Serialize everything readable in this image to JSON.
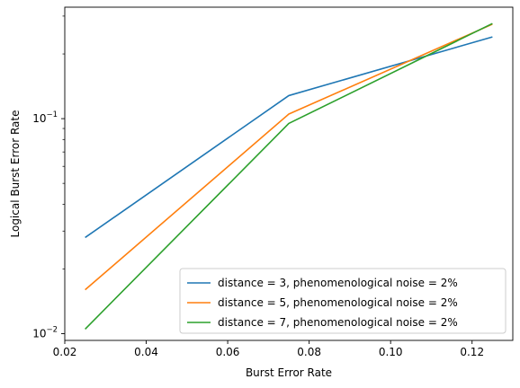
{
  "chart_data": {
    "type": "line",
    "title": "",
    "xlabel": "Burst Error Rate",
    "ylabel": "Logical Burst Error Rate",
    "yscale": "log",
    "xlim": [
      0.02,
      0.13
    ],
    "ylim": [
      0.0093,
      0.33
    ],
    "xticks": [
      0.02,
      0.04,
      0.06,
      0.08,
      0.1,
      0.12
    ],
    "xtick_labels": [
      "0.02",
      "0.04",
      "0.06",
      "0.08",
      "0.10",
      "0.12"
    ],
    "yticks_major": [
      0.01,
      0.1
    ],
    "ytick_labels": [
      {
        "base": "10",
        "exp": "−2"
      },
      {
        "base": "10",
        "exp": "−1"
      }
    ],
    "grid": false,
    "legend_position": "lower-right",
    "x": [
      0.025,
      0.075,
      0.125
    ],
    "series": [
      {
        "name": "distance = 3, phenomenological noise = 2%",
        "color": "#1f77b4",
        "values": [
          0.028,
          0.128,
          0.24
        ]
      },
      {
        "name": "distance = 5, phenomenological noise = 2%",
        "color": "#ff7f0e",
        "values": [
          0.016,
          0.105,
          0.275
        ]
      },
      {
        "name": "distance = 7, phenomenological noise = 2%",
        "color": "#2ca02c",
        "values": [
          0.0105,
          0.095,
          0.277
        ]
      }
    ]
  }
}
